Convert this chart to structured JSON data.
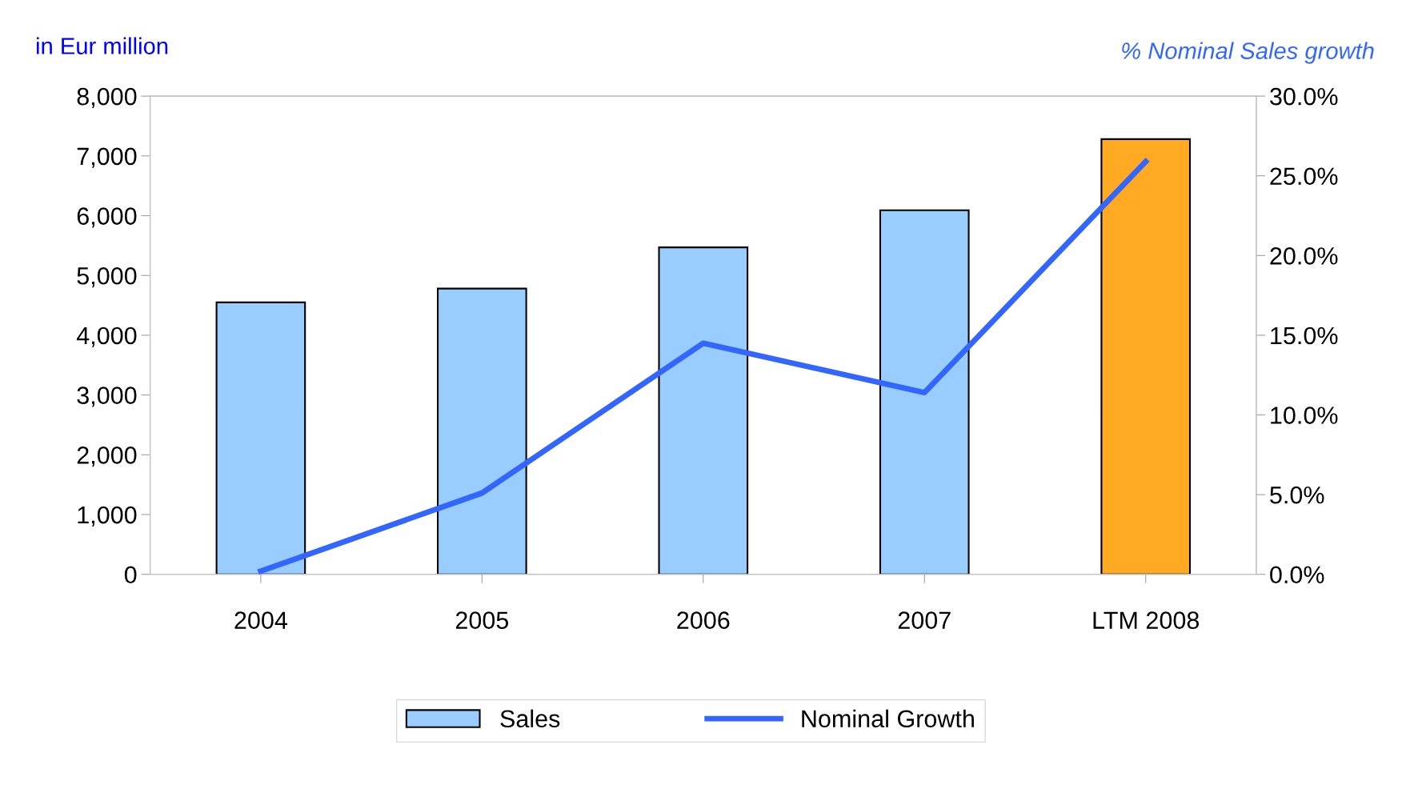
{
  "chart_data": {
    "type": "bar",
    "ylabel": "in Eur million",
    "y2label": "% Nominal Sales growth",
    "categories": [
      "2004",
      "2005",
      "2006",
      "2007",
      "LTM 2008"
    ],
    "series": [
      {
        "name": "Sales",
        "color": "#99ccff",
        "colors": [
          "#99ccff",
          "#99ccff",
          "#99ccff",
          "#99ccff",
          "#ffaa22"
        ],
        "values": [
          4550,
          4780,
          5470,
          6090,
          7280
        ]
      },
      {
        "name": "Nominal Growth",
        "type": "line",
        "color": "#3366ff",
        "axis": "y2",
        "values": [
          0.2,
          5.1,
          14.5,
          11.4,
          25.9
        ]
      }
    ],
    "ylim": [
      0,
      8000
    ],
    "yticks": [
      {
        "value": 0,
        "label": "0"
      },
      {
        "value": 1000,
        "label": "1,000"
      },
      {
        "value": 2000,
        "label": "2,000"
      },
      {
        "value": 3000,
        "label": "3,000"
      },
      {
        "value": 4000,
        "label": "4,000"
      },
      {
        "value": 5000,
        "label": "5,000"
      },
      {
        "value": 6000,
        "label": "6,000"
      },
      {
        "value": 7000,
        "label": "7,000"
      },
      {
        "value": 8000,
        "label": "8,000"
      }
    ],
    "y2lim": [
      0,
      30
    ],
    "y2ticks": [
      {
        "value": 0,
        "label": "0.0%"
      },
      {
        "value": 5,
        "label": "5.0%"
      },
      {
        "value": 10,
        "label": "10.0%"
      },
      {
        "value": 15,
        "label": "15.0%"
      },
      {
        "value": 20,
        "label": "20.0%"
      },
      {
        "value": 25,
        "label": "25.0%"
      },
      {
        "value": 30,
        "label": "30.0%"
      }
    ],
    "grid": false,
    "legend": "bottom",
    "marker": "none",
    "line_style": "solid"
  }
}
